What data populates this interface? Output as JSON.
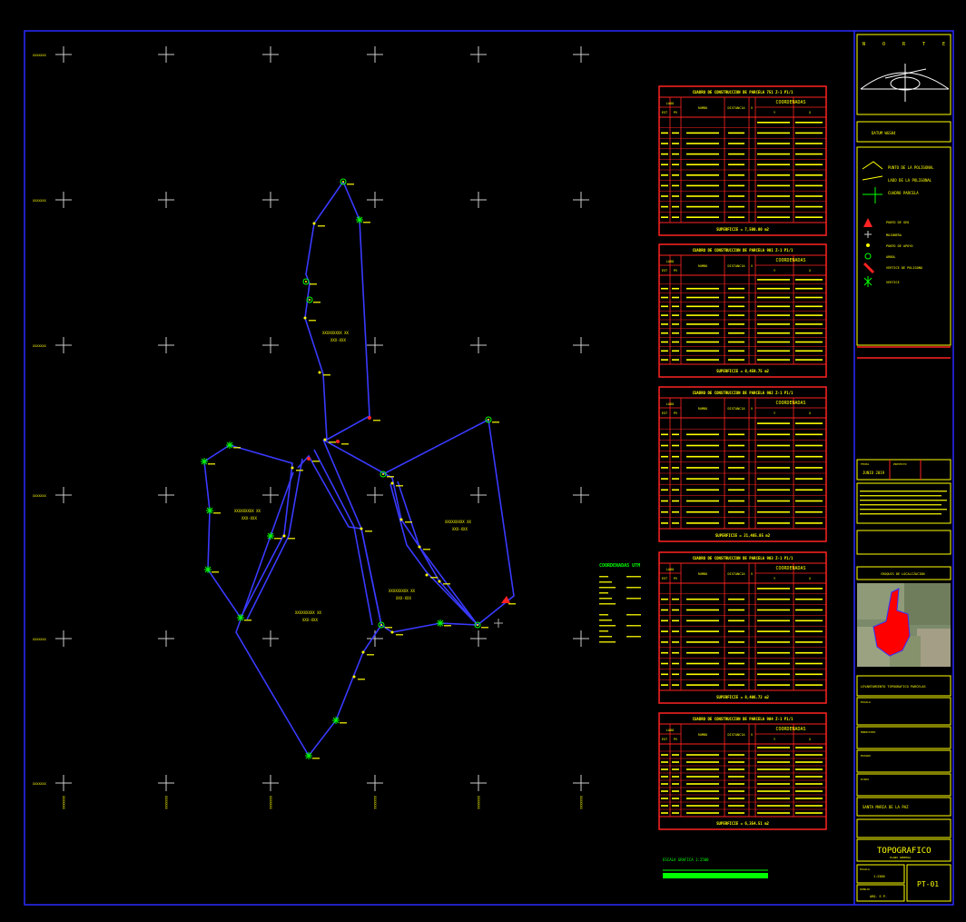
{
  "grid": {
    "coord_label": "XXXXXXX",
    "col_labels": [
      "XXXXXXX",
      "XXXXXXX",
      "XXXXXXX",
      "XXXXXXX",
      "XXXXXXX",
      "XXXXXXX"
    ]
  },
  "parcels": [
    {
      "label": "XXXXXXXXX XX",
      "sub": "XXX-XXX"
    },
    {
      "label": "XXXXXXXXX XX",
      "sub": "XXX-XXX"
    },
    {
      "label": "XXXXXXXXX XX",
      "sub": "XXX-XXX"
    },
    {
      "label": "XXXXXXXXX XX",
      "sub": "XXX-XXX"
    },
    {
      "label": "XXXXXXXXX XX",
      "sub": "XXX-XXX"
    }
  ],
  "tables": [
    {
      "title": "CUADRO DE CONSTRUCCION DE PARCELA 751 Z-1 P1/1",
      "area": "SUPERFICIE = 7,500.00 m2"
    },
    {
      "title": "CUADRO DE CONSTRUCCION DE PARCELA 901 Z-1 P1/1",
      "area": "SUPERFICIE = 8,459.75 m2"
    },
    {
      "title": "CUADRO DE CONSTRUCCION DE PARCELA 902 Z-1 P1/1",
      "area": "SUPERFICIE = 21,485.85 m2"
    },
    {
      "title": "CUADRO DE CONSTRUCCION DE PARCELA 903 Z-1 P1/1",
      "area": "SUPERFICIE = 8,406.72 m2"
    },
    {
      "title": "CUADRO DE CONSTRUCCION DE PARCELA 904 Z-1 P1/1",
      "area": "SUPERFICIE = 6,354.51 m2"
    }
  ],
  "table_headers": {
    "lado": "LADO",
    "est": "EST",
    "pv": "PV",
    "rumbo": "RUMBO",
    "distancia": "DISTANCIA",
    "v": "V",
    "coordenadas": "COORDENADAS",
    "y": "Y",
    "x": "X"
  },
  "table_rows": 10,
  "notes": {
    "title": "COORDENADAS UTM"
  },
  "scale": {
    "title": "ESCALA GRAFICA 1:2500"
  },
  "title_block": {
    "north_letters": [
      "N",
      "O",
      "R",
      "T",
      "E"
    ],
    "datum": "DATUM WGS84",
    "legend": [
      {
        "text": "PUNTO DE LA POLIGONAL"
      },
      {
        "text": "LADO DE LA POLIGONAL"
      },
      {
        "text": "CUADRO PARCELA"
      },
      {
        "text": "PUNTO DE GEO"
      },
      {
        "text": "MOJONERA"
      },
      {
        "text": "PUNTO DE APOYO"
      },
      {
        "text": "ARBOL"
      },
      {
        "text": "VERTICE DE POLIGONO"
      },
      {
        "text": "VERTICE"
      }
    ],
    "fecha_label": "FECHA",
    "fecha": "JUNIO 2019",
    "proyecto_label": "PROYECTO",
    "ubicacion": "CROQUIS DE LOCALIZACION",
    "project_name": "LEVANTAMIENTO TOPOGRAFICO PARCELAS",
    "field1": "ESCALA",
    "field2": "MUNICIPIO",
    "field3": "ESTADO",
    "field4": "EJIDO",
    "ejido_name": "SANTA MARIA DE LA PAZ",
    "plan_type": "TOPOGRAFICO",
    "plan_sub": "PLANO GENERAL",
    "escala_label": "ESCALA",
    "escala": "1:2500",
    "drawn_label": "DIBUJO",
    "drawn": "ARQ. E.P.",
    "sheet_id": "PT-01"
  }
}
